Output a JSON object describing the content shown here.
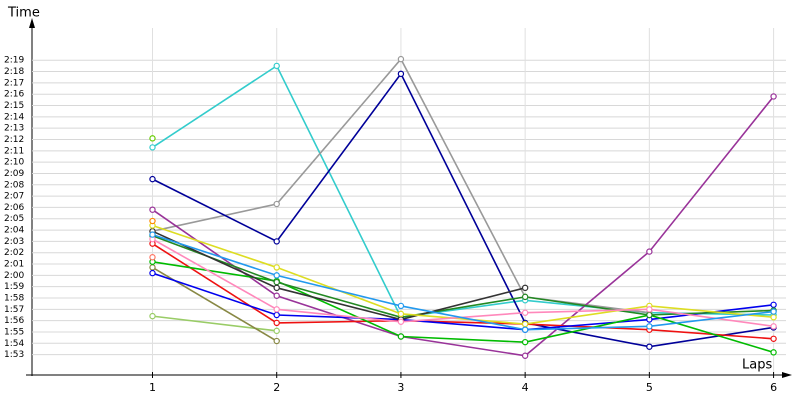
{
  "chart_data": {
    "type": "line",
    "y_label": "Time",
    "x_label": "Laps",
    "x": [
      1,
      2,
      3,
      4,
      5,
      6
    ],
    "xlim": [
      0.03,
      6.1
    ],
    "xticks": [
      1,
      2,
      3,
      4,
      5,
      6
    ],
    "ylim": [
      111.2,
      142.2
    ],
    "yticks": [
      {
        "value": 113,
        "label": "1:53"
      },
      {
        "value": 114,
        "label": "1:54"
      },
      {
        "value": 115,
        "label": "1:55"
      },
      {
        "value": 116,
        "label": "1:56"
      },
      {
        "value": 117,
        "label": "1:57"
      },
      {
        "value": 118,
        "label": "1:58"
      },
      {
        "value": 119,
        "label": "1:59"
      },
      {
        "value": 120,
        "label": "2:00"
      },
      {
        "value": 121,
        "label": "2:01"
      },
      {
        "value": 122,
        "label": "2:02"
      },
      {
        "value": 123,
        "label": "2:03"
      },
      {
        "value": 124,
        "label": "2:04"
      },
      {
        "value": 125,
        "label": "2:05"
      },
      {
        "value": 126,
        "label": "2:06"
      },
      {
        "value": 127,
        "label": "2:07"
      },
      {
        "value": 128,
        "label": "2:08"
      },
      {
        "value": 129,
        "label": "2:09"
      },
      {
        "value": 130,
        "label": "2:10"
      },
      {
        "value": 131,
        "label": "2:11"
      },
      {
        "value": 132,
        "label": "2:12"
      },
      {
        "value": 133,
        "label": "2:13"
      },
      {
        "value": 134,
        "label": "2:14"
      },
      {
        "value": 135,
        "label": "2:15"
      },
      {
        "value": 136,
        "label": "2:16"
      },
      {
        "value": 137,
        "label": "2:17"
      },
      {
        "value": 138,
        "label": "2:18"
      },
      {
        "value": 139,
        "label": "2:19"
      }
    ],
    "grid": true,
    "series": [
      {
        "color": "#33cccc",
        "values": [
          131.3,
          138.5,
          116.3,
          117.8,
          116.7,
          116.5
        ]
      },
      {
        "color": "#999999",
        "values": [
          123.9,
          126.3,
          139.1,
          118.1,
          116.7,
          null
        ]
      },
      {
        "color": "#000099",
        "values": [
          128.5,
          123.0,
          137.8,
          115.8,
          113.7,
          115.4
        ]
      },
      {
        "color": "#993399",
        "values": [
          125.8,
          118.2,
          114.6,
          112.9,
          122.1,
          135.8
        ]
      },
      {
        "color": "#66cc00",
        "values": [
          132.1,
          null,
          null,
          null,
          null,
          null
        ]
      },
      {
        "color": "#99cc66",
        "values": [
          116.4,
          115.1,
          null,
          null,
          null,
          null
        ]
      },
      {
        "color": "#888844",
        "values": [
          120.7,
          114.2,
          null,
          null,
          null,
          null
        ]
      },
      {
        "color": "#ee1111",
        "values": [
          122.8,
          115.8,
          116.0,
          115.7,
          115.2,
          114.4
        ]
      },
      {
        "color": "#0000ee",
        "values": [
          120.2,
          116.5,
          116.1,
          115.2,
          116.1,
          117.4
        ]
      },
      {
        "color": "#00bb00",
        "values": [
          121.2,
          119.5,
          114.6,
          114.1,
          116.5,
          113.2
        ]
      },
      {
        "color": "#228822",
        "values": [
          123.5,
          119.4,
          116.3,
          118.1,
          116.5,
          116.9
        ]
      },
      {
        "color": "#333333",
        "values": [
          123.9,
          118.9,
          116.1,
          118.9,
          null,
          null
        ]
      },
      {
        "color": "#dddd22",
        "values": [
          124.4,
          120.7,
          116.6,
          115.7,
          117.3,
          116.3
        ]
      },
      {
        "color": "#ff88bb",
        "values": [
          123.2,
          117.0,
          115.9,
          116.7,
          117.0,
          115.5
        ]
      },
      {
        "color": "#2299ee",
        "values": [
          123.6,
          120.0,
          117.3,
          115.2,
          115.5,
          116.8
        ]
      },
      {
        "color": "#ff8800",
        "values": [
          124.8,
          null,
          null,
          null,
          null,
          null
        ]
      },
      {
        "color": "#ff7766",
        "values": [
          121.6,
          null,
          null,
          null,
          null,
          null
        ]
      }
    ]
  }
}
